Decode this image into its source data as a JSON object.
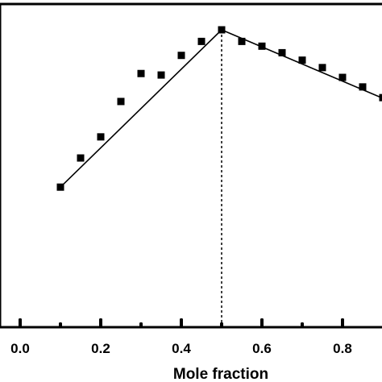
{
  "chart_data": {
    "type": "scatter",
    "title": "",
    "xlabel": "Mole fraction",
    "ylabel": "",
    "xlim": [
      -0.05,
      0.9
    ],
    "ylim": [
      0,
      1.0
    ],
    "x_ticks": [
      0.0,
      0.2,
      0.4,
      0.6,
      0.8
    ],
    "x_tick_labels": [
      "0.0",
      "0.2",
      "0.4",
      "0.6",
      "0.8"
    ],
    "x_minor_ticks": [
      0.1,
      0.3,
      0.5,
      0.7
    ],
    "grid": false,
    "series": [
      {
        "marker": "square",
        "color": "#000000",
        "x": [
          0.1,
          0.15,
          0.2,
          0.25,
          0.3,
          0.35,
          0.4,
          0.45,
          0.5,
          0.55,
          0.6,
          0.65,
          0.7,
          0.75,
          0.8,
          0.85,
          0.9
        ],
        "y": [
          0.471,
          0.569,
          0.64,
          0.759,
          0.853,
          0.848,
          0.914,
          0.961,
          1.0,
          0.961,
          0.945,
          0.923,
          0.898,
          0.873,
          0.84,
          0.808,
          0.772
        ]
      }
    ],
    "fit_lines": [
      {
        "style": "solid",
        "x": [
          0.1,
          0.5
        ],
        "y": [
          0.471,
          1.0
        ]
      },
      {
        "style": "solid",
        "x": [
          0.5,
          0.9
        ],
        "y": [
          1.0,
          0.77
        ]
      }
    ],
    "annotations": [
      {
        "style": "dashed",
        "type": "vertical-line",
        "x": 0.5,
        "y_from": 0,
        "y_to": 1.0
      }
    ]
  }
}
